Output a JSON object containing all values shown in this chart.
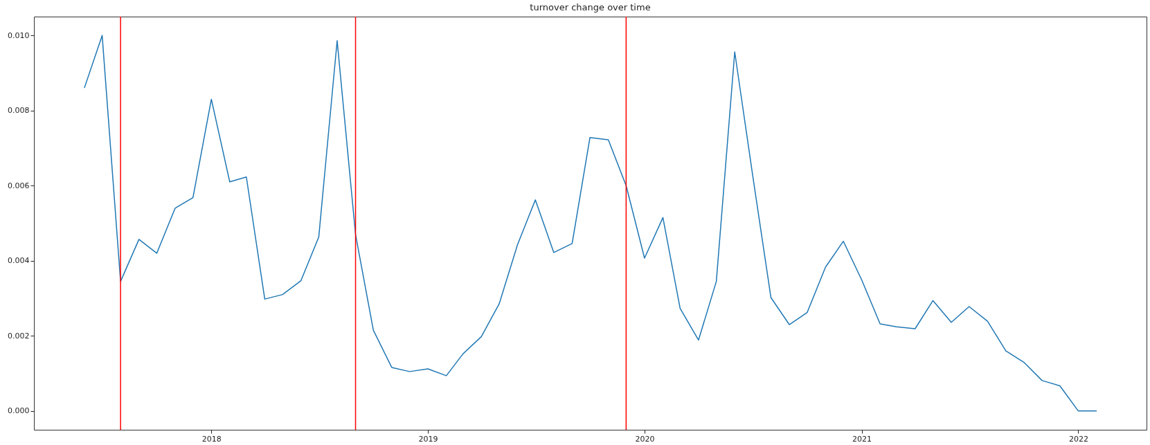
{
  "chart_data": {
    "type": "line",
    "title": "turnover change over time",
    "x": [
      "2017-06",
      "2017-07",
      "2017-08",
      "2017-09",
      "2017-10",
      "2017-11",
      "2017-12",
      "2018-01",
      "2018-02",
      "2018-03",
      "2018-04",
      "2018-05",
      "2018-06",
      "2018-07",
      "2018-08",
      "2018-09",
      "2018-10",
      "2018-11",
      "2018-12",
      "2019-01",
      "2019-02",
      "2019-03",
      "2019-04",
      "2019-05",
      "2019-06",
      "2019-07",
      "2019-08",
      "2019-09",
      "2019-10",
      "2019-11",
      "2019-12",
      "2020-01",
      "2020-02",
      "2020-03",
      "2020-04",
      "2020-05",
      "2020-06",
      "2020-07",
      "2020-08",
      "2020-09",
      "2020-10",
      "2020-11",
      "2020-12",
      "2021-01",
      "2021-02",
      "2021-03",
      "2021-04",
      "2021-05",
      "2021-06",
      "2021-07",
      "2021-08",
      "2021-09",
      "2021-10",
      "2021-11",
      "2021-12",
      "2022-01",
      "2022-02"
    ],
    "series": [
      {
        "color": "#1f77b4",
        "values": [
          0.0086,
          0.01,
          0.00345,
          0.00457,
          0.0042,
          0.0054,
          0.00568,
          0.0083,
          0.0061,
          0.00623,
          0.00298,
          0.0031,
          0.00347,
          0.00463,
          0.00986,
          0.0047,
          0.00215,
          0.00116,
          0.00105,
          0.00112,
          0.00094,
          0.00152,
          0.00198,
          0.00285,
          0.00443,
          0.00562,
          0.00422,
          0.00446,
          0.00728,
          0.00722,
          0.006,
          0.00407,
          0.00515,
          0.00273,
          0.00189,
          0.00345,
          0.00956,
          0.0063,
          0.00302,
          0.0023,
          0.00262,
          0.00383,
          0.00452,
          0.00349,
          0.00232,
          0.00224,
          0.00219,
          0.00294,
          0.00236,
          0.00278,
          0.00239,
          0.0016,
          0.0013,
          0.00081,
          0.00067,
          0.0,
          0.0
        ]
      }
    ],
    "xlim": [
      "2017-03-08",
      "2022-04-26"
    ],
    "xticks": [
      {
        "value": "2018",
        "label": "2018"
      },
      {
        "value": "2019",
        "label": "2019"
      },
      {
        "value": "2020",
        "label": "2020"
      },
      {
        "value": "2021",
        "label": "2021"
      },
      {
        "value": "2022",
        "label": "2022"
      }
    ],
    "ylim": [
      -0.0005,
      0.0105
    ],
    "yticks": [
      {
        "value": 0,
        "label": "0.000"
      },
      {
        "value": 0.002,
        "label": "0.002"
      },
      {
        "value": 0.004,
        "label": "0.004"
      },
      {
        "value": 0.006,
        "label": "0.006"
      },
      {
        "value": 0.008,
        "label": "0.008"
      },
      {
        "value": 0.01,
        "label": "0.010"
      }
    ],
    "ref_lines": [
      {
        "axis": "x",
        "value": "2017-08",
        "color": "#ff0000"
      },
      {
        "axis": "x",
        "value": "2018-09",
        "color": "#ff0000"
      },
      {
        "axis": "x",
        "value": "2019-12",
        "color": "#ff0000"
      }
    ],
    "grid": false
  }
}
